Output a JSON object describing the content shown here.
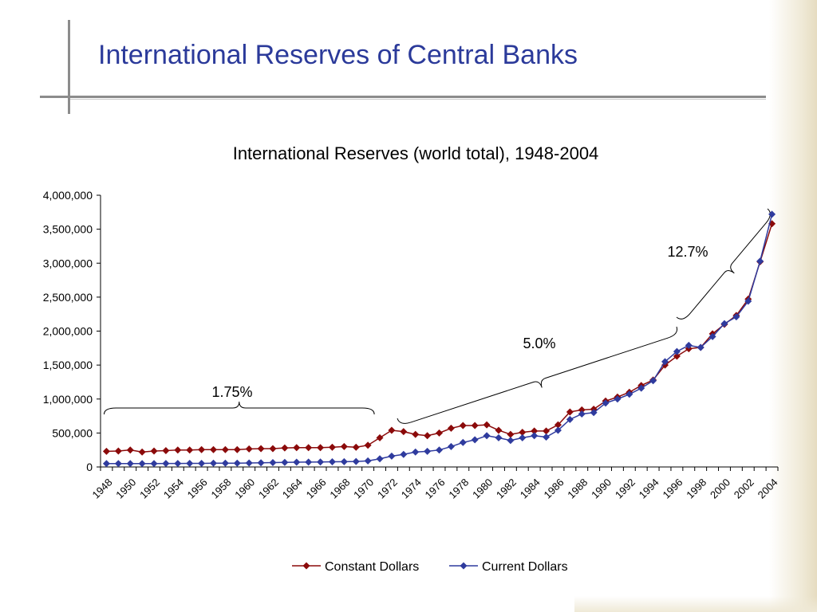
{
  "slide": {
    "title": "International Reserves of Central Banks"
  },
  "colors": {
    "title": "#2b3a9a",
    "constant": "#8b0a0a",
    "current": "#2f3b9e"
  },
  "chart_data": {
    "type": "line",
    "title": "International Reserves (world total), 1948-2004",
    "xlabel": "",
    "ylabel": "",
    "ylim": [
      0,
      4000000
    ],
    "yticks": [
      "0",
      "500,000",
      "1,000,000",
      "1,500,000",
      "2,000,000",
      "2,500,000",
      "3,000,000",
      "3,500,000",
      "4,000,000"
    ],
    "x": [
      1948,
      1949,
      1950,
      1951,
      1952,
      1953,
      1954,
      1955,
      1956,
      1957,
      1958,
      1959,
      1960,
      1961,
      1962,
      1963,
      1964,
      1965,
      1966,
      1967,
      1968,
      1969,
      1970,
      1971,
      1972,
      1973,
      1974,
      1975,
      1976,
      1977,
      1978,
      1979,
      1980,
      1981,
      1982,
      1983,
      1984,
      1985,
      1986,
      1987,
      1988,
      1989,
      1990,
      1991,
      1992,
      1993,
      1994,
      1995,
      1996,
      1997,
      1998,
      1999,
      2000,
      2001,
      2002,
      2003,
      2004
    ],
    "xtick_labels": [
      "1948",
      "1950",
      "1952",
      "1954",
      "1956",
      "1958",
      "1960",
      "1962",
      "1964",
      "1966",
      "1968",
      "1970",
      "1972",
      "1974",
      "1976",
      "1978",
      "1980",
      "1982",
      "1984",
      "1986",
      "1988",
      "1990",
      "1992",
      "1994",
      "1996",
      "1998",
      "2000",
      "2002",
      "2004"
    ],
    "grid": false,
    "legend": "bottom",
    "series": [
      {
        "name": "Constant Dollars",
        "values": [
          230000,
          235000,
          250000,
          220000,
          235000,
          240000,
          250000,
          250000,
          255000,
          255000,
          255000,
          255000,
          265000,
          270000,
          270000,
          280000,
          285000,
          285000,
          285000,
          290000,
          300000,
          290000,
          320000,
          430000,
          540000,
          520000,
          480000,
          460000,
          500000,
          570000,
          610000,
          610000,
          620000,
          540000,
          480000,
          510000,
          530000,
          530000,
          620000,
          810000,
          840000,
          850000,
          970000,
          1030000,
          1100000,
          1200000,
          1280000,
          1500000,
          1630000,
          1740000,
          1760000,
          1960000,
          2100000,
          2230000,
          2470000,
          3020000,
          3580000
        ]
      },
      {
        "name": "Current Dollars",
        "values": [
          50000,
          50000,
          50000,
          50000,
          50000,
          52000,
          52000,
          53000,
          53000,
          55000,
          55000,
          56000,
          58000,
          62000,
          64000,
          68000,
          70000,
          72000,
          74000,
          76000,
          78000,
          80000,
          90000,
          120000,
          160000,
          185000,
          220000,
          230000,
          250000,
          300000,
          360000,
          400000,
          460000,
          430000,
          390000,
          430000,
          460000,
          440000,
          540000,
          700000,
          780000,
          800000,
          940000,
          1000000,
          1070000,
          1160000,
          1270000,
          1550000,
          1700000,
          1790000,
          1760000,
          1920000,
          2110000,
          2210000,
          2440000,
          3030000,
          3720000
        ]
      }
    ],
    "annotations": [
      {
        "text": "1.75%",
        "from": 1948,
        "to": 1970
      },
      {
        "text": "5.0%",
        "from": 1972,
        "to": 1996
      },
      {
        "text": "12.7%",
        "from": 1996,
        "to": 2004
      }
    ]
  }
}
